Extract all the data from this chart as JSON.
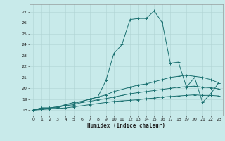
{
  "title": "",
  "xlabel": "Humidex (Indice chaleur)",
  "ylabel": "",
  "bg_color": "#c8eaea",
  "grid_color": "#b0d4d4",
  "line_color": "#1a7070",
  "xlim": [
    -0.5,
    23.5
  ],
  "ylim": [
    17.5,
    27.7
  ],
  "xticks": [
    0,
    1,
    2,
    3,
    4,
    5,
    6,
    7,
    8,
    9,
    10,
    11,
    12,
    13,
    14,
    15,
    16,
    17,
    18,
    19,
    20,
    21,
    22,
    23
  ],
  "yticks": [
    18,
    19,
    20,
    21,
    22,
    23,
    24,
    25,
    26,
    27
  ],
  "series": [
    {
      "x": [
        0,
        1,
        2,
        3,
        4,
        5,
        6,
        7,
        8,
        9,
        10,
        11,
        12,
        13,
        14,
        15,
        16,
        17,
        18,
        19,
        20,
        21,
        22,
        23
      ],
      "y": [
        18.0,
        18.2,
        18.2,
        18.2,
        18.5,
        18.7,
        18.8,
        19.0,
        19.2,
        20.7,
        23.2,
        24.0,
        26.3,
        26.4,
        26.4,
        27.1,
        26.0,
        22.3,
        22.4,
        20.1,
        21.0,
        18.7,
        19.5,
        20.5
      ]
    },
    {
      "x": [
        0,
        1,
        2,
        3,
        4,
        5,
        6,
        7,
        8,
        9,
        10,
        11,
        12,
        13,
        14,
        15,
        16,
        17,
        18,
        19,
        20,
        21,
        22,
        23
      ],
      "y": [
        18.0,
        18.2,
        18.2,
        18.3,
        18.5,
        18.6,
        18.8,
        19.0,
        19.2,
        19.4,
        19.7,
        19.9,
        20.1,
        20.3,
        20.4,
        20.6,
        20.8,
        21.0,
        21.1,
        21.2,
        21.1,
        21.0,
        20.8,
        20.5
      ]
    },
    {
      "x": [
        0,
        1,
        2,
        3,
        4,
        5,
        6,
        7,
        8,
        9,
        10,
        11,
        12,
        13,
        14,
        15,
        16,
        17,
        18,
        19,
        20,
        21,
        22,
        23
      ],
      "y": [
        18.0,
        18.1,
        18.2,
        18.3,
        18.4,
        18.5,
        18.7,
        18.8,
        18.95,
        19.05,
        19.2,
        19.35,
        19.5,
        19.6,
        19.7,
        19.8,
        19.9,
        20.0,
        20.1,
        20.15,
        20.2,
        20.1,
        20.05,
        19.95
      ]
    },
    {
      "x": [
        0,
        1,
        2,
        3,
        4,
        5,
        6,
        7,
        8,
        9,
        10,
        11,
        12,
        13,
        14,
        15,
        16,
        17,
        18,
        19,
        20,
        21,
        22,
        23
      ],
      "y": [
        18.0,
        18.05,
        18.1,
        18.15,
        18.2,
        18.3,
        18.4,
        18.5,
        18.6,
        18.7,
        18.8,
        18.85,
        18.9,
        18.95,
        19.05,
        19.1,
        19.2,
        19.25,
        19.3,
        19.35,
        19.4,
        19.35,
        19.35,
        19.3
      ]
    }
  ]
}
